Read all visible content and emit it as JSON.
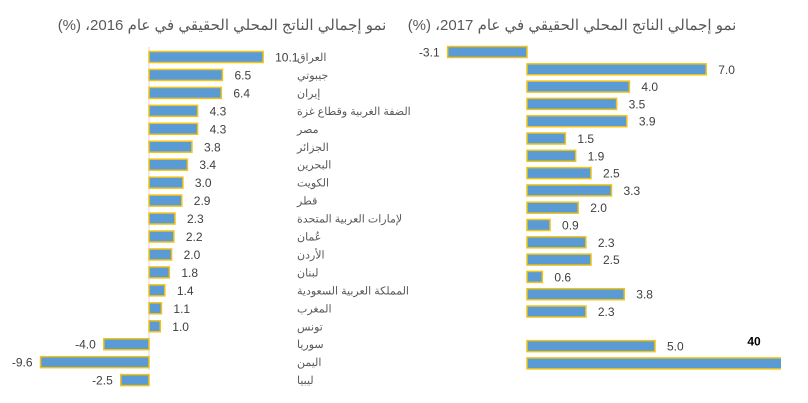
{
  "chart_data": [
    {
      "type": "bar",
      "orientation": "horizontal",
      "title": "نمو إجمالي الناتج المحلي الحقيقي في عام 2016، (%)",
      "categories": [
        "العراق",
        "جيبوتي",
        "إيران",
        "الضفة الغربية وقطاع غزة",
        "مصر",
        "الجزائر",
        "البحرين",
        "الكويت",
        "قطر",
        "لإمارات العربية المتحدة",
        "عُمان",
        "الأردن",
        "لبنان",
        "المملكة العربية السعودية",
        "المغرب",
        "تونس",
        "سوريا",
        "اليمن",
        "ليبيا"
      ],
      "values": [
        10.1,
        6.5,
        6.4,
        4.3,
        4.3,
        3.8,
        3.4,
        3.0,
        2.9,
        2.3,
        2.2,
        2.0,
        1.8,
        1.4,
        1.1,
        1.0,
        -4.0,
        -9.6,
        -2.5
      ],
      "labels": [
        "10.1",
        "6.5",
        "6.4",
        "4.3",
        "4.3",
        "3.8",
        "3.4",
        "3.0",
        "2.9",
        "2.3",
        "2.2",
        "2.0",
        "1.8",
        "1.4",
        "1.1",
        "1.0",
        "-4.0",
        "-9.6",
        "-2.5"
      ],
      "bar_color": "#5b9bd5",
      "bar_border_color": "#f2c314",
      "grid": false,
      "legend": "none"
    },
    {
      "type": "bar",
      "orientation": "horizontal",
      "title": "نمو إجمالي الناتج المحلي الحقيقي في عام 2017، (%)",
      "values": [
        -3.1,
        7.0,
        4.0,
        3.5,
        3.9,
        1.5,
        1.9,
        2.5,
        3.3,
        2.0,
        0.9,
        2.3,
        2.5,
        0.6,
        3.8,
        2.3,
        null,
        5.0,
        40
      ],
      "labels": [
        "-3.1",
        "7.0",
        "4.0",
        "3.5",
        "3.9",
        "1.5",
        "1.9",
        "2.5",
        "3.3",
        "2.0",
        "0.9",
        "2.3",
        "2.5",
        "0.6",
        "3.8",
        "2.3",
        "",
        "5.0",
        "40"
      ],
      "bar_color": "#5b9bd5",
      "bar_border_color": "#f2c314",
      "grid": false,
      "legend": "none"
    }
  ]
}
